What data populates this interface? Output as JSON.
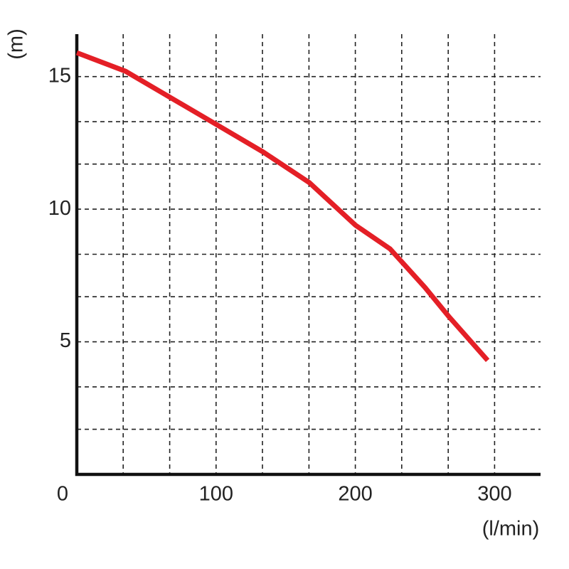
{
  "chart_data": {
    "type": "line",
    "y_label": "(m)",
    "x_label": "(l/min)",
    "x": [
      0,
      35,
      100,
      134,
      167,
      200,
      225,
      250,
      267,
      295
    ],
    "series": [
      {
        "color": "#e41f26",
        "values": [
          15.9,
          15.2,
          13.2,
          12.15,
          11.0,
          9.4,
          8.5,
          7.05,
          5.96,
          4.3
        ]
      }
    ],
    "xlim": [
      0,
      333
    ],
    "ylim": [
      0,
      16.6
    ],
    "xticks": [
      0,
      100,
      200,
      300
    ],
    "yticks": [
      5,
      10,
      15
    ],
    "xgrid": [
      33.3,
      66.7,
      100,
      133.3,
      166.7,
      200,
      233.3,
      266.7,
      300
    ],
    "ygrid": [
      1.7,
      3.3,
      5,
      6.7,
      8.3,
      10,
      11.7,
      13.3,
      15
    ],
    "grid": true
  }
}
